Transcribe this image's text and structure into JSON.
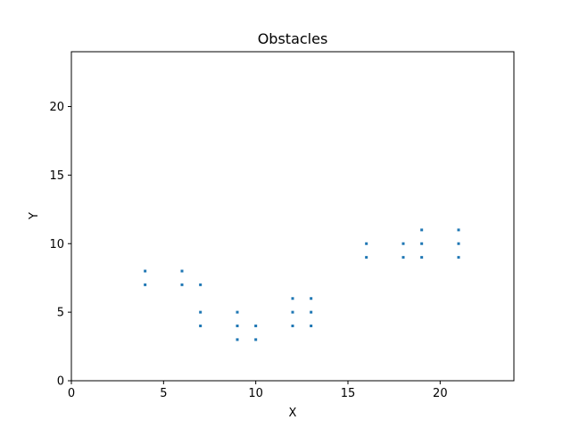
{
  "chart_data": {
    "type": "scatter",
    "title": "Obstacles",
    "xlabel": "X",
    "ylabel": "Y",
    "xlim": [
      0,
      24
    ],
    "ylim": [
      0,
      24
    ],
    "xticks": [
      0,
      5,
      10,
      15,
      20
    ],
    "yticks": [
      0,
      5,
      10,
      15,
      20
    ],
    "grid": false,
    "marker": "square",
    "series": [
      {
        "color": "#1f77b4",
        "points": [
          [
            4,
            7
          ],
          [
            4,
            8
          ],
          [
            6,
            7
          ],
          [
            6,
            8
          ],
          [
            7,
            7
          ],
          [
            7,
            5
          ],
          [
            7,
            4
          ],
          [
            9,
            5
          ],
          [
            9,
            4
          ],
          [
            9,
            3
          ],
          [
            10,
            4
          ],
          [
            10,
            3
          ],
          [
            12,
            6
          ],
          [
            12,
            5
          ],
          [
            12,
            4
          ],
          [
            13,
            6
          ],
          [
            13,
            5
          ],
          [
            13,
            4
          ],
          [
            16,
            10
          ],
          [
            16,
            9
          ],
          [
            18,
            10
          ],
          [
            18,
            9
          ],
          [
            19,
            11
          ],
          [
            19,
            10
          ],
          [
            19,
            9
          ],
          [
            21,
            11
          ],
          [
            21,
            10
          ],
          [
            21,
            9
          ]
        ]
      }
    ]
  }
}
